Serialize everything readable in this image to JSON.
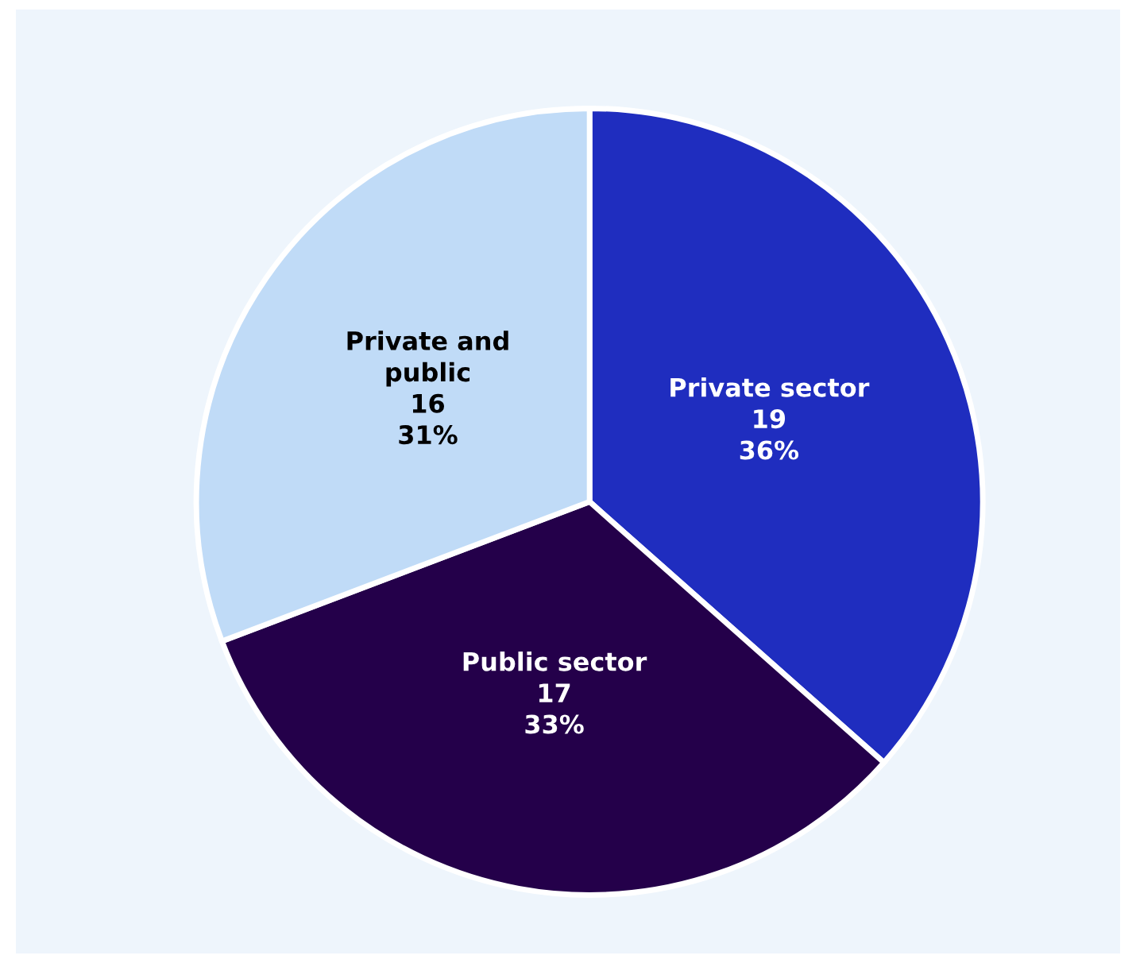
{
  "chart_data": {
    "type": "pie",
    "categories": [
      "Private sector",
      "Public sector",
      "Private and\npublic"
    ],
    "values": [
      19,
      17,
      16
    ],
    "value_labels": [
      "19\n36%",
      "17\n33%",
      "16\n31%"
    ],
    "colors": [
      "#1f2dbf",
      "#24004a",
      "#c0dbf7"
    ],
    "legend": false
  }
}
